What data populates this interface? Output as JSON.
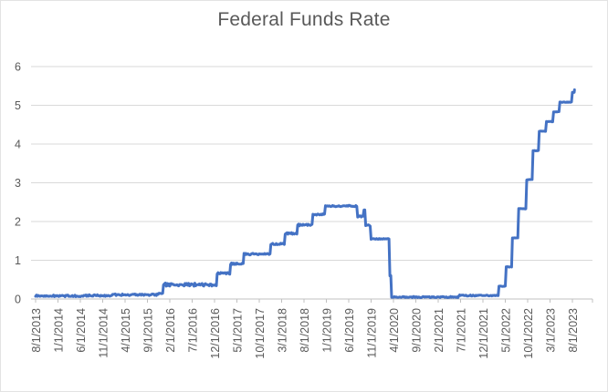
{
  "window": {
    "background": "#FFFFFF",
    "border_color": "#E3E3E3"
  },
  "chart_data": {
    "type": "line",
    "title": "Federal Funds Rate",
    "xlabel": "",
    "ylabel": "",
    "legend": "none",
    "grid": "horizontal",
    "ylim": [
      0,
      6
    ],
    "y_ticks": [
      0,
      1,
      2,
      3,
      4,
      5,
      6
    ],
    "x_tick_labels": [
      "8/1/2013",
      "1/1/2014",
      "6/1/2014",
      "11/1/2014",
      "4/1/2015",
      "9/1/2015",
      "2/1/2016",
      "7/1/2016",
      "12/1/2016",
      "5/1/2017",
      "10/1/2017",
      "3/1/2018",
      "8/1/2018",
      "1/1/2019",
      "6/1/2019",
      "11/1/2019",
      "4/1/2020",
      "9/1/2020",
      "2/1/2021",
      "7/1/2021",
      "12/1/2021",
      "5/1/2022",
      "10/1/2022",
      "3/1/2023",
      "8/1/2023"
    ],
    "x_tick_interval_months": 5,
    "title_color": "#595959",
    "label_color": "#595959",
    "line_color": "#4472C4",
    "gridline_color": "#D9D9D9",
    "axis_color": "#C0C0C0",
    "series": [
      {
        "name": "Federal Funds Rate",
        "unit": "percent",
        "steps": [
          {
            "date": "2013-08-01",
            "value": 0.08
          },
          {
            "date": "2014-06-01",
            "value": 0.09
          },
          {
            "date": "2015-01-01",
            "value": 0.11
          },
          {
            "date": "2015-11-01",
            "value": 0.13
          },
          {
            "date": "2015-12-17",
            "value": 0.37
          },
          {
            "date": "2016-12-15",
            "value": 0.66
          },
          {
            "date": "2017-03-16",
            "value": 0.91
          },
          {
            "date": "2017-06-15",
            "value": 1.16
          },
          {
            "date": "2017-12-14",
            "value": 1.42
          },
          {
            "date": "2018-03-22",
            "value": 1.69
          },
          {
            "date": "2018-06-14",
            "value": 1.91
          },
          {
            "date": "2018-09-27",
            "value": 2.18
          },
          {
            "date": "2018-12-20",
            "value": 2.4
          },
          {
            "date": "2019-08-01",
            "value": 2.13
          },
          {
            "date": "2019-09-19",
            "value": 1.9
          },
          {
            "date": "2019-10-31",
            "value": 1.55
          },
          {
            "date": "2020-03-04",
            "value": 0.6
          },
          {
            "date": "2020-03-16",
            "value": 0.05
          },
          {
            "date": "2021-06-17",
            "value": 0.09
          },
          {
            "date": "2022-03-17",
            "value": 0.33
          },
          {
            "date": "2022-05-05",
            "value": 0.83
          },
          {
            "date": "2022-06-16",
            "value": 1.58
          },
          {
            "date": "2022-07-28",
            "value": 2.33
          },
          {
            "date": "2022-09-22",
            "value": 3.08
          },
          {
            "date": "2022-11-03",
            "value": 3.83
          },
          {
            "date": "2022-12-15",
            "value": 4.33
          },
          {
            "date": "2023-02-02",
            "value": 4.58
          },
          {
            "date": "2023-03-23",
            "value": 4.83
          },
          {
            "date": "2023-05-04",
            "value": 5.08
          },
          {
            "date": "2023-07-27",
            "value": 5.33
          }
        ],
        "end_date": "2023-08-15",
        "end_value": 5.33
      }
    ],
    "spike": {
      "date": "2019-09-17",
      "value": 2.3
    },
    "daily_noise_eras": [
      [
        0.0,
        28.5,
        0.022
      ],
      [
        28.5,
        40.5,
        0.042
      ],
      [
        40.5,
        64.6,
        0.022
      ],
      [
        64.6,
        74.9,
        0.018
      ],
      [
        74.9,
        79.1,
        0.012
      ],
      [
        79.6,
        103.5,
        0.016
      ],
      [
        103.5,
        121.0,
        0.006
      ]
    ]
  }
}
